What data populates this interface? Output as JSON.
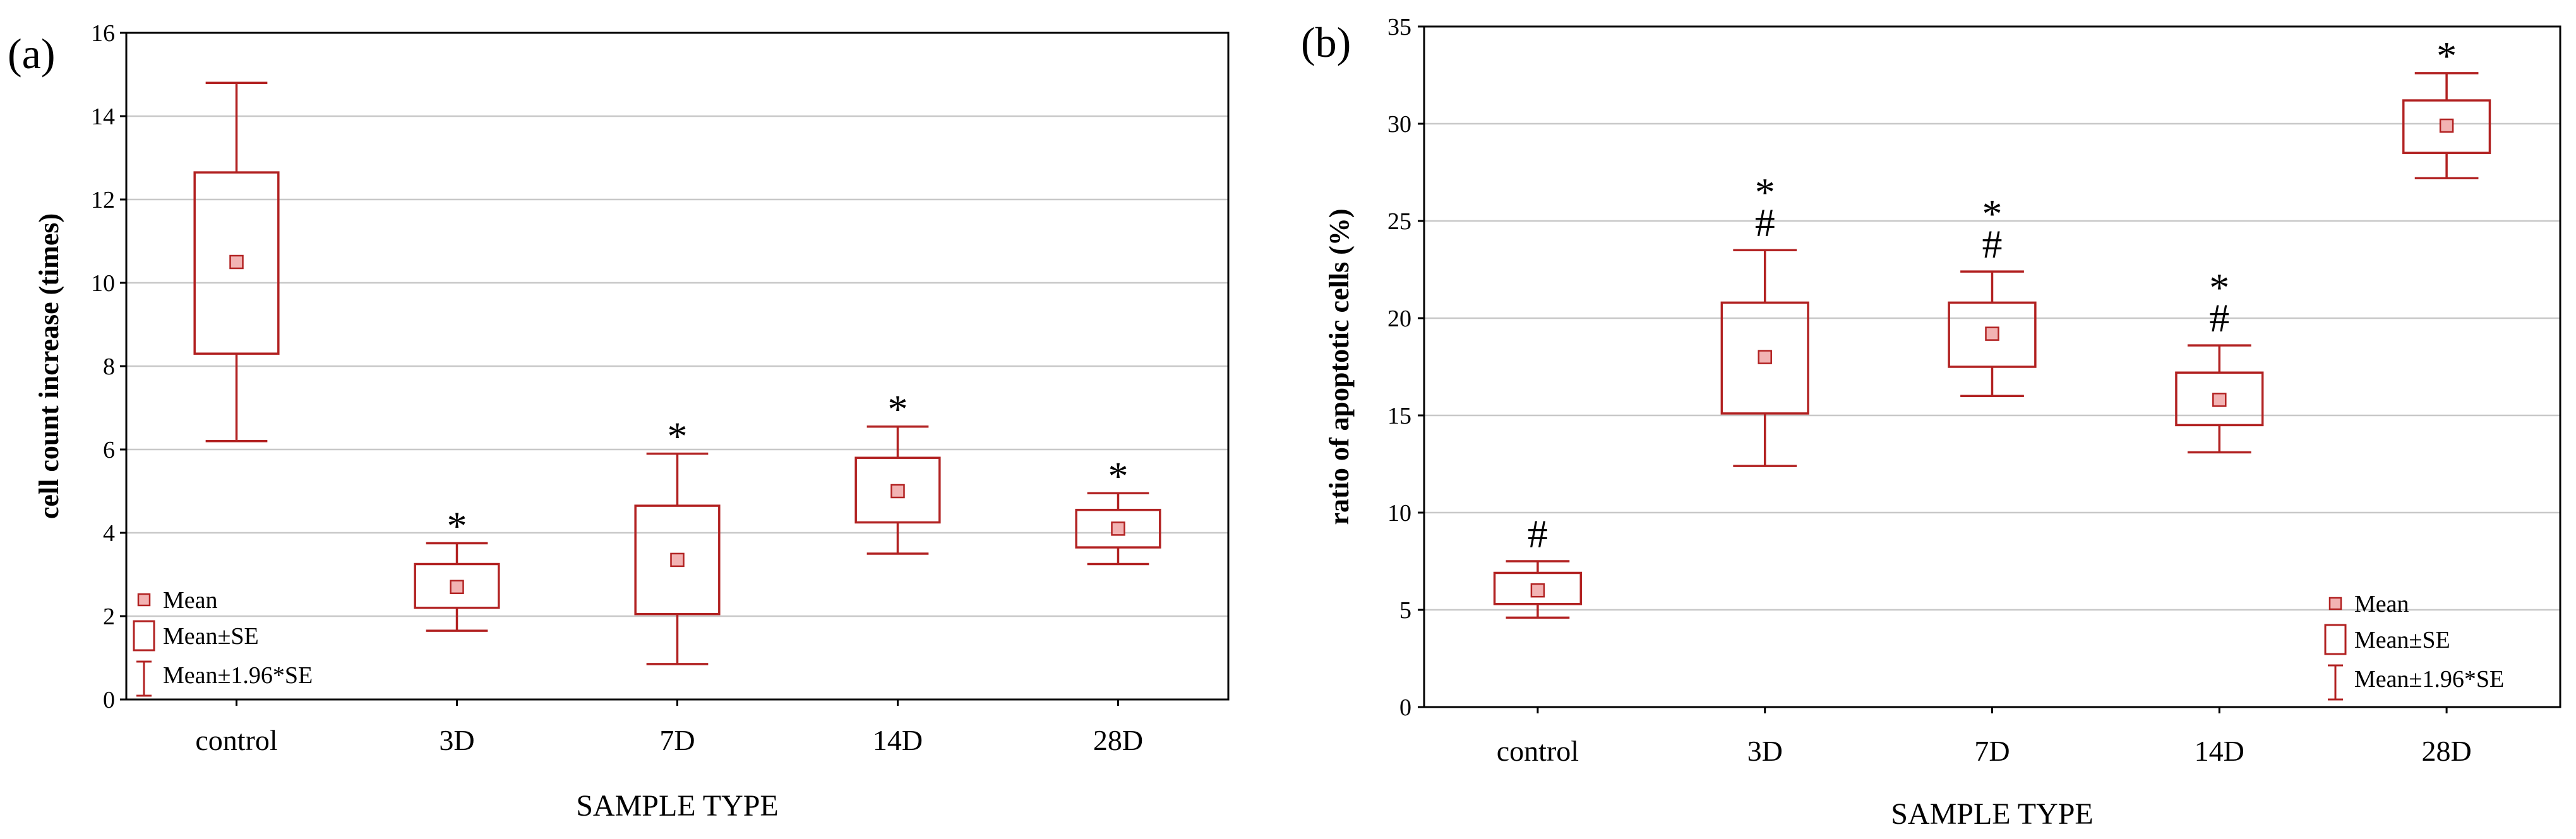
{
  "colors": {
    "box": "#b22222",
    "mean_fill": "#f2b3b3",
    "grid": "#c8c8c8",
    "axis": "#000000"
  },
  "chart_data": [
    {
      "type": "box",
      "panel": "(a)",
      "title": "",
      "xlabel": "SAMPLE TYPE",
      "ylabel": "cell count increase (times)",
      "ylim": [
        0,
        16
      ],
      "yticks": [
        0,
        2,
        4,
        6,
        8,
        10,
        12,
        14,
        16
      ],
      "ytick_labels": [
        "0",
        "2",
        "4",
        "6",
        "8",
        "10",
        "12",
        "14",
        "16"
      ],
      "grid": true,
      "categories": [
        "control",
        "3D",
        "7D",
        "14D",
        "28D"
      ],
      "series": [
        {
          "name": "control",
          "mean": 10.5,
          "se_low": 8.3,
          "se_high": 12.65,
          "ci_low": 6.2,
          "ci_high": 14.8,
          "annotation": ""
        },
        {
          "name": "3D",
          "mean": 2.7,
          "se_low": 2.2,
          "se_high": 3.25,
          "ci_low": 1.65,
          "ci_high": 3.75,
          "annotation": "*"
        },
        {
          "name": "7D",
          "mean": 3.35,
          "se_low": 2.05,
          "se_high": 4.65,
          "ci_low": 0.85,
          "ci_high": 5.9,
          "annotation": "*"
        },
        {
          "name": "14D",
          "mean": 5.0,
          "se_low": 4.25,
          "se_high": 5.8,
          "ci_low": 3.5,
          "ci_high": 6.55,
          "annotation": "*"
        },
        {
          "name": "28D",
          "mean": 4.1,
          "se_low": 3.65,
          "se_high": 4.55,
          "ci_low": 3.25,
          "ci_high": 4.95,
          "annotation": "*"
        }
      ],
      "legend": {
        "position": "bottom-left",
        "entries": [
          "Mean",
          "Mean±SE",
          "Mean±1.96*SE"
        ]
      }
    },
    {
      "type": "box",
      "panel": "(b)",
      "title": "",
      "xlabel": "SAMPLE TYPE",
      "ylabel": "ratio of apoptotic cells (%)",
      "ylim": [
        0,
        35
      ],
      "yticks": [
        0,
        5,
        10,
        15,
        20,
        25,
        30,
        35
      ],
      "ytick_labels": [
        "0",
        "5",
        "10",
        "15",
        "20",
        "25",
        "30",
        "35"
      ],
      "grid": true,
      "categories": [
        "control",
        "3D",
        "7D",
        "14D",
        "28D"
      ],
      "series": [
        {
          "name": "control",
          "mean": 6.0,
          "se_low": 5.3,
          "se_high": 6.9,
          "ci_low": 4.6,
          "ci_high": 7.5,
          "annotation": "#"
        },
        {
          "name": "3D",
          "mean": 18.0,
          "se_low": 15.1,
          "se_high": 20.8,
          "ci_low": 12.4,
          "ci_high": 23.5,
          "annotation": "*\n#"
        },
        {
          "name": "7D",
          "mean": 19.2,
          "se_low": 17.5,
          "se_high": 20.8,
          "ci_low": 16.0,
          "ci_high": 22.4,
          "annotation": "*\n#"
        },
        {
          "name": "14D",
          "mean": 15.8,
          "se_low": 14.5,
          "se_high": 17.2,
          "ci_low": 13.1,
          "ci_high": 18.6,
          "annotation": "*\n#"
        },
        {
          "name": "28D",
          "mean": 29.9,
          "se_low": 28.5,
          "se_high": 31.2,
          "ci_low": 27.2,
          "ci_high": 32.6,
          "annotation": "*"
        }
      ],
      "legend": {
        "position": "bottom-right",
        "entries": [
          "Mean",
          "Mean±SE",
          "Mean±1.96*SE"
        ]
      }
    }
  ]
}
